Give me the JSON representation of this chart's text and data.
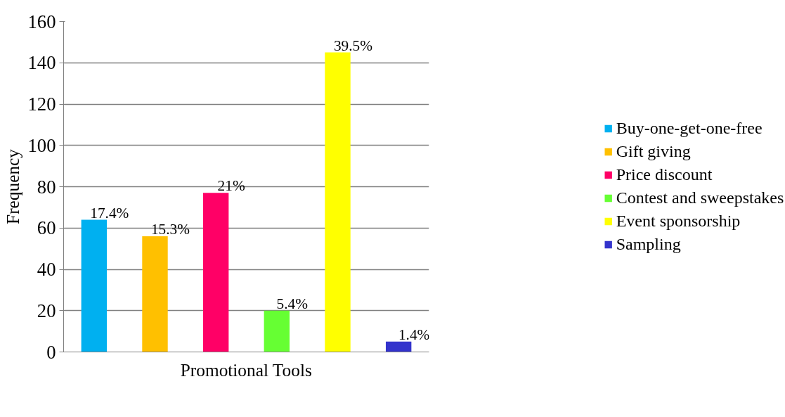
{
  "chart_data": {
    "type": "bar",
    "ylabel": "Frequency",
    "xlabel": "Promotional Tools",
    "categories": [
      null,
      null,
      null,
      null,
      null,
      null
    ],
    "series": [
      {
        "name": "Buy-one-get-one-free",
        "color": "#00b0f0",
        "values": [
          64,
          null,
          null,
          null,
          null,
          null
        ]
      },
      {
        "name": "Gift giving",
        "color": "#ffc000",
        "values": [
          null,
          56,
          null,
          null,
          null,
          null
        ]
      },
      {
        "name": "Price discount",
        "color": "#ff0066",
        "values": [
          null,
          null,
          77,
          null,
          null,
          null
        ]
      },
      {
        "name": "Contest and sweepstakes",
        "color": "#66ff33",
        "values": [
          null,
          null,
          null,
          20,
          null,
          null
        ]
      },
      {
        "name": "Event sponsorship",
        "color": "#ffff00",
        "values": [
          null,
          null,
          null,
          null,
          145,
          null
        ]
      },
      {
        "name": "Sampling",
        "color": "#3333cc",
        "values": [
          null,
          null,
          null,
          null,
          null,
          5
        ]
      }
    ],
    "annotations": [
      "17.4%",
      "15.3%",
      "21%",
      "5.4%",
      "39.5%",
      "1.4%"
    ],
    "ylim": [
      0,
      160
    ],
    "yticks": [
      0,
      20,
      40,
      60,
      80,
      100,
      120,
      140,
      160
    ],
    "grid": "y",
    "legend": "right"
  }
}
